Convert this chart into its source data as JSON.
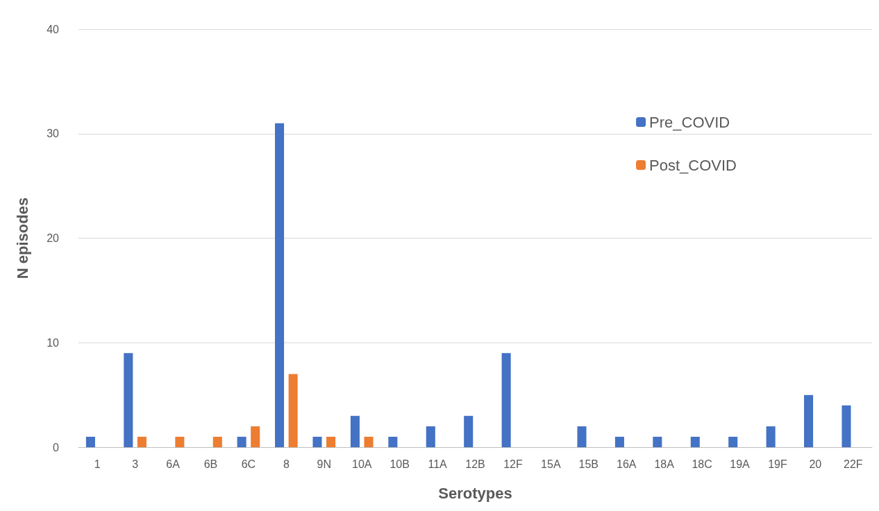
{
  "chart_data": {
    "type": "bar",
    "xlabel": "Serotypes",
    "ylabel": "N episodes",
    "categories": [
      "1",
      "3",
      "6A",
      "6B",
      "6C",
      "8",
      "9N",
      "10A",
      "10B",
      "11A",
      "12B",
      "12F",
      "15A",
      "15B",
      "16A",
      "18A",
      "18C",
      "19A",
      "19F",
      "20",
      "22F"
    ],
    "series": [
      {
        "name": "Pre_COVID",
        "color": "#4472c4",
        "values": [
          1,
          9,
          0,
          0,
          1,
          31,
          1,
          3,
          1,
          2,
          3,
          9,
          0,
          2,
          1,
          1,
          1,
          1,
          2,
          5,
          4
        ]
      },
      {
        "name": "Post_COVID",
        "color": "#ed7d31",
        "values": [
          0,
          1,
          1,
          1,
          2,
          7,
          1,
          1,
          0,
          0,
          0,
          0,
          0,
          0,
          0,
          0,
          0,
          0,
          0,
          0,
          0
        ]
      }
    ],
    "ylim": [
      0,
      40
    ],
    "yticks": [
      0,
      10,
      20,
      30,
      40
    ],
    "grid": "y",
    "legend": "top right"
  }
}
